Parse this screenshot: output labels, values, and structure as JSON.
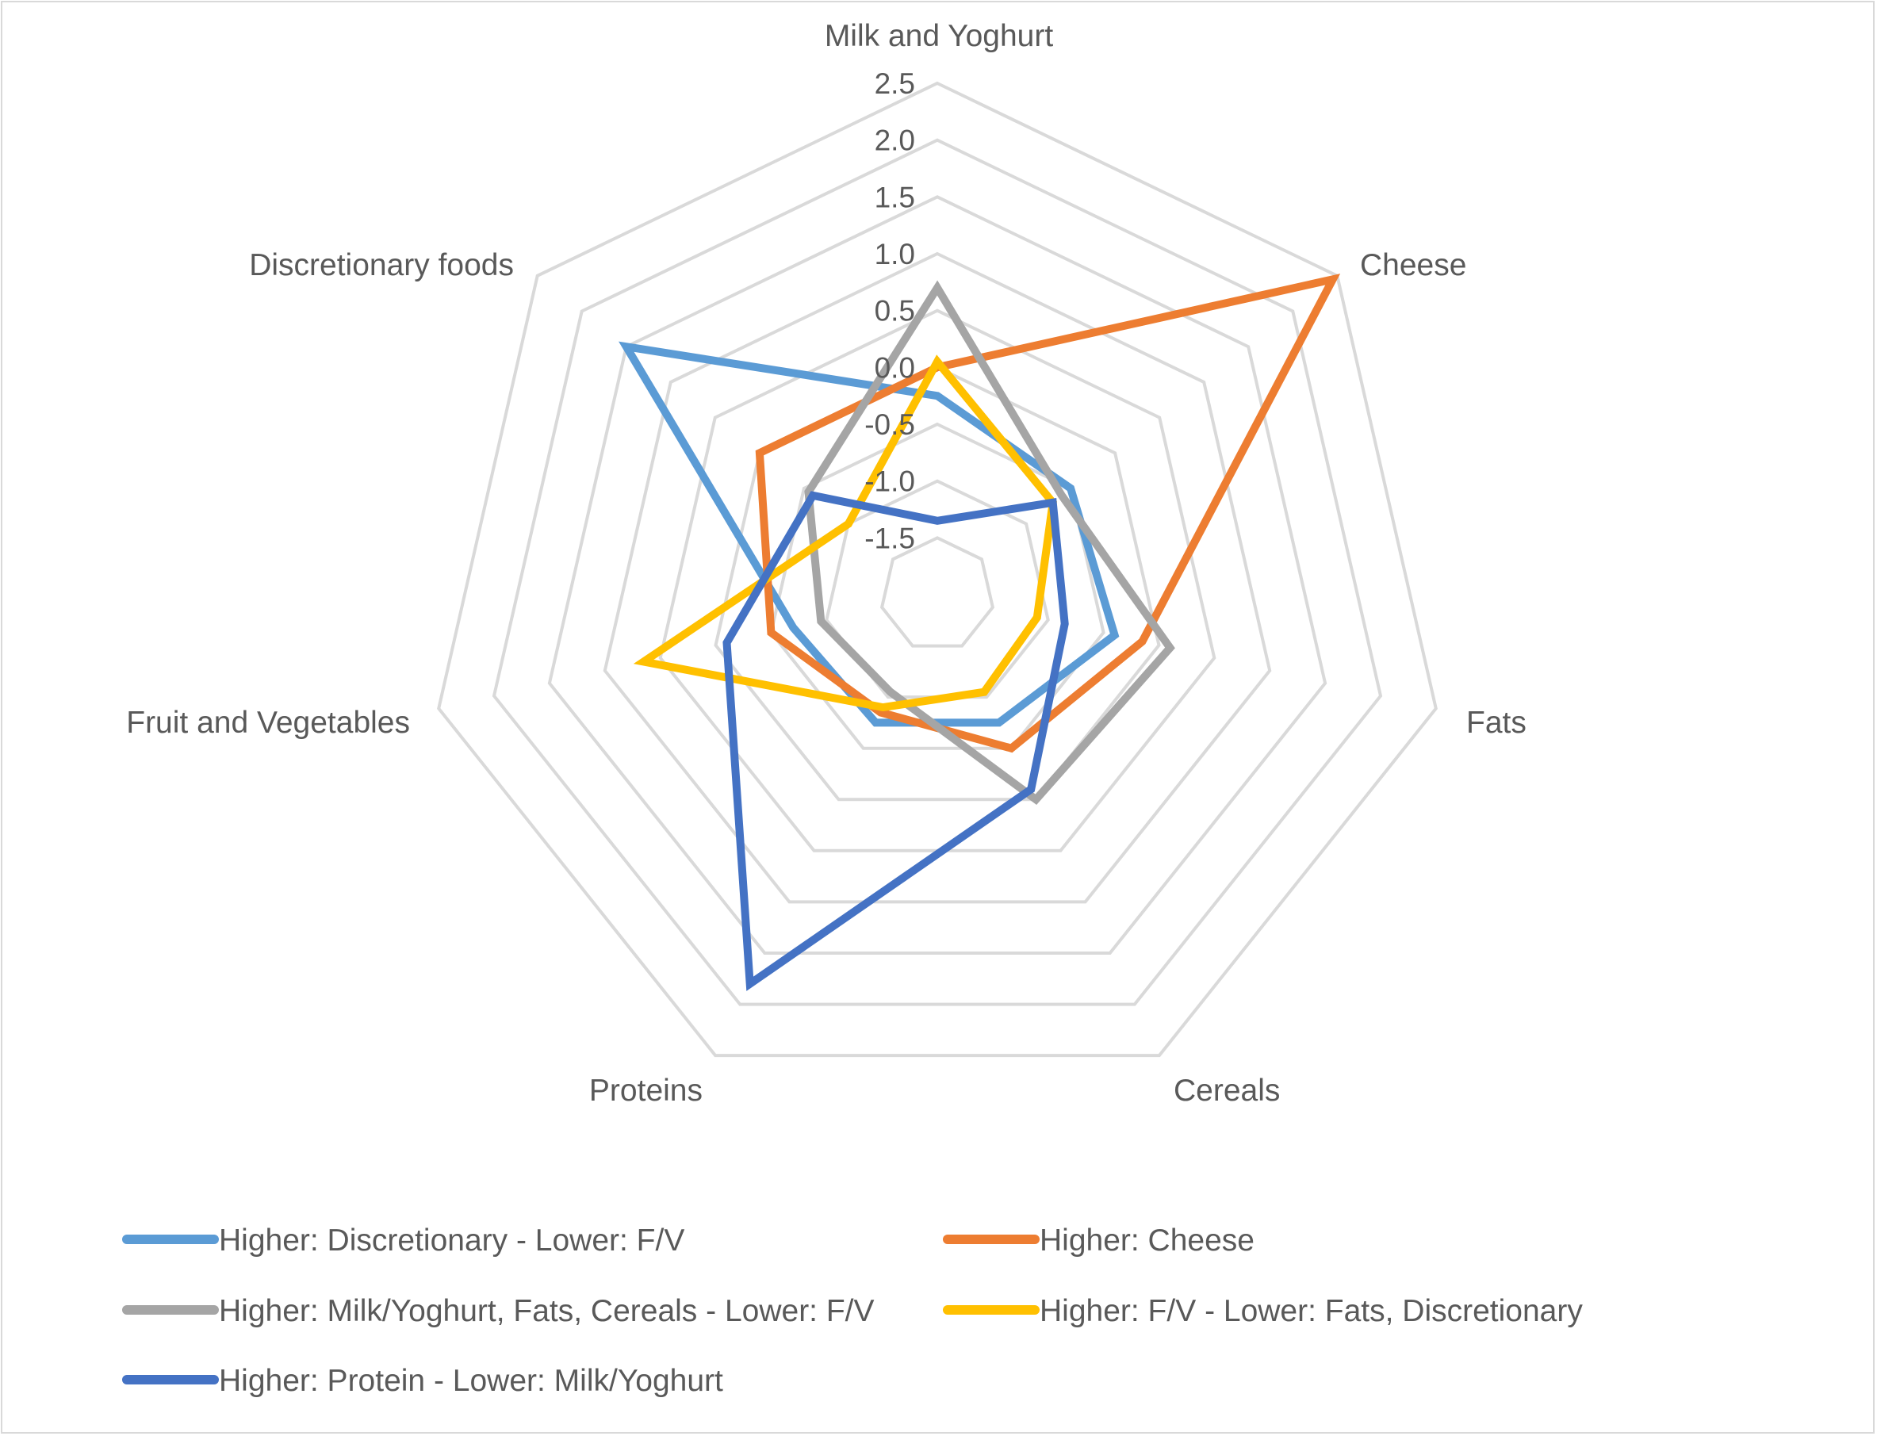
{
  "chart_data": {
    "type": "radar",
    "title": "",
    "categories": [
      "Milk and Yoghurt",
      "Cheese",
      "Fats",
      "Cereals",
      "Proteins",
      "Fruit and Vegetables",
      "Discretionary foods"
    ],
    "rlim": [
      -2.0,
      2.5
    ],
    "tick_values": [
      -1.5,
      -1.0,
      -0.5,
      0.0,
      0.5,
      1.0,
      1.5,
      2.0,
      2.5
    ],
    "tick_labels": [
      "-1.5",
      "-1.0",
      "-0.5",
      "0.0",
      "0.5",
      "1.0",
      "1.5",
      "2.0",
      "2.5"
    ],
    "grid": true,
    "legend_position": "bottom",
    "series": [
      {
        "name": "Higher: Discretionary - Lower: F/V",
        "color": "#5b9bd5",
        "values": [
          -0.25,
          -0.5,
          -0.4,
          -0.75,
          -0.75,
          -0.7,
          1.5
        ]
      },
      {
        "name": "Higher: Cheese",
        "color": "#ed7d31",
        "values": [
          0.0,
          2.45,
          -0.15,
          -0.5,
          -0.85,
          -0.5,
          0.0
        ]
      },
      {
        "name": "Higher: Milk/Yoghurt, Fats, Cereals - Lower: F/V",
        "color": "#a5a5a5",
        "values": [
          0.7,
          -0.6,
          0.1,
          0.0,
          -1.05,
          -0.95,
          -0.55
        ]
      },
      {
        "name": "Higher: F/V - Lower: Fats, Discretionary",
        "color": "#ffc000",
        "values": [
          0.05,
          -0.7,
          -1.1,
          -1.05,
          -0.9,
          0.65,
          -1.0
        ]
      },
      {
        "name": "Higher: Protein - Lower: Milk/Yoghurt",
        "color": "#4472c4",
        "values": [
          -1.35,
          -0.7,
          -0.85,
          -0.1,
          1.8,
          -0.1,
          -0.6
        ]
      }
    ]
  }
}
